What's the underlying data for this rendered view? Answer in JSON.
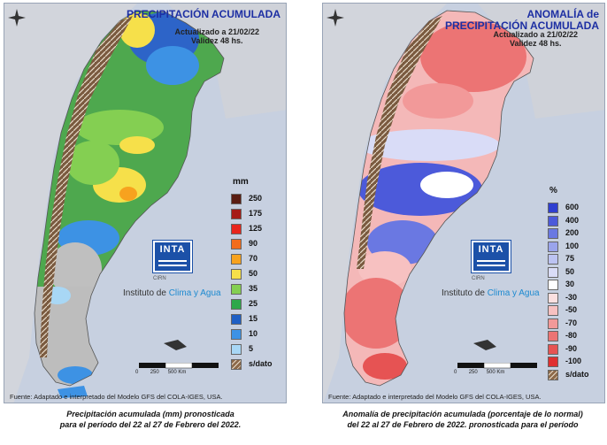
{
  "left": {
    "title": "PRECIPITACIÓN ACUMULADA",
    "updated": "Actualizado a 21/02/22",
    "validity": "Validez 48 hs.",
    "legend_unit": "mm",
    "legend": [
      {
        "label": "250",
        "color": "#5a1d12"
      },
      {
        "label": "175",
        "color": "#a61b16"
      },
      {
        "label": "125",
        "color": "#e8251c"
      },
      {
        "label": "90",
        "color": "#f26c1c"
      },
      {
        "label": "70",
        "color": "#f7a21e"
      },
      {
        "label": "50",
        "color": "#f6e04a"
      },
      {
        "label": "35",
        "color": "#84cf52"
      },
      {
        "label": "25",
        "color": "#2ea84a"
      },
      {
        "label": "15",
        "color": "#1f5fc4"
      },
      {
        "label": "10",
        "color": "#3d92e4"
      },
      {
        "label": "5",
        "color": "#a8d7f5"
      },
      {
        "label": "s/dato",
        "color": "#8d6a4a"
      }
    ],
    "logo": "INTA",
    "cirn": "CIRN",
    "institute_a": "Instituto de ",
    "institute_b": "Clima y Agua",
    "scale_labels": [
      "0",
      "250",
      "500 Km"
    ],
    "source": "Fuente: Adaptado e interpretado del Modelo GFS del COLA-IGES, USA.",
    "caption_1": "Precipitación acumulada (mm) pronosticada",
    "caption_2": "para el período del 22 al 27 de Febrero del 2022."
  },
  "right": {
    "title_1": "ANOMALÍA de",
    "title_2": "PRECIPITACIÓN ACUMULADA",
    "updated": "Actualizado a 21/02/22",
    "validity": "Validez 48 hs.",
    "legend_unit": "%",
    "legend": [
      {
        "label": "600",
        "color": "#2f3fd0"
      },
      {
        "label": "400",
        "color": "#4c5ada"
      },
      {
        "label": "200",
        "color": "#6a78e2"
      },
      {
        "label": "100",
        "color": "#9aa4ec"
      },
      {
        "label": "75",
        "color": "#bcc3f2"
      },
      {
        "label": "50",
        "color": "#d9dcf7"
      },
      {
        "label": "30",
        "color": "#ffffff"
      },
      {
        "label": "-30",
        "color": "#fbe0e0"
      },
      {
        "label": "-50",
        "color": "#f7c1c1"
      },
      {
        "label": "-70",
        "color": "#f29999"
      },
      {
        "label": "-80",
        "color": "#ec7474"
      },
      {
        "label": "-90",
        "color": "#e65353"
      },
      {
        "label": "-100",
        "color": "#df3030"
      },
      {
        "label": "s/dato",
        "color": "#8d6a4a"
      }
    ],
    "logo": "INTA",
    "cirn": "CIRN",
    "institute_a": "Instituto de ",
    "institute_b": "Clima y Agua",
    "scale_labels": [
      "0",
      "250",
      "500 Km"
    ],
    "source": "Fuente: Adaptado e interpretado del Modelo GFS del COLA-IGES, USA.",
    "caption_1": "Anomalía de precipitación acumulada (porcentaje de lo normal)",
    "caption_2": "del 22 al 27 de Febrero de 2022. pronosticada para el período"
  }
}
